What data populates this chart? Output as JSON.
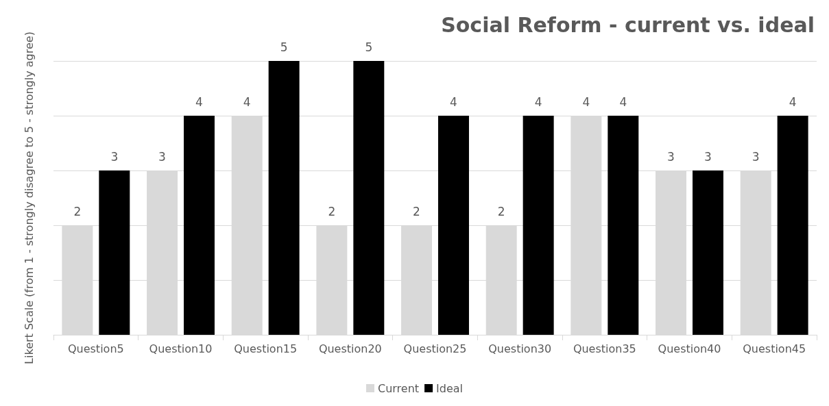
{
  "chart_data": {
    "type": "bar",
    "title": "Social Reform - current vs. ideal",
    "ylabel": "Likert Scale (from 1 - strongly disagree to 5 - strongly agree)",
    "categories": [
      "Question5",
      "Question10",
      "Question15",
      "Question20",
      "Question25",
      "Question30",
      "Question35",
      "Question40",
      "Question45"
    ],
    "series": [
      {
        "name": "Current",
        "color": "#d9d9d9",
        "values": [
          2,
          3,
          4,
          2,
          2,
          2,
          4,
          3,
          3
        ]
      },
      {
        "name": "Ideal",
        "color": "#000000",
        "values": [
          3,
          4,
          5,
          5,
          4,
          4,
          4,
          3,
          4
        ]
      }
    ],
    "ylim": [
      0,
      5
    ],
    "yticks": [
      {
        "value": 0,
        "label": null
      },
      {
        "value": 1,
        "label": null
      },
      {
        "value": 2,
        "label": null
      },
      {
        "value": 3,
        "label": null
      },
      {
        "value": 4,
        "label": null
      },
      {
        "value": 5,
        "label": null
      }
    ],
    "grid": "y",
    "legend": "bottom",
    "data_labels": true,
    "tick_labels": "x"
  }
}
